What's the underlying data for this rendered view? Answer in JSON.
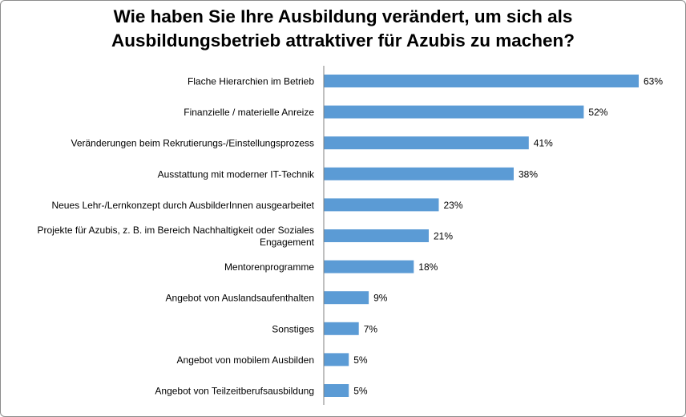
{
  "chart_data": {
    "type": "bar",
    "orientation": "horizontal",
    "title": "Wie haben Sie Ihre Ausbildung verändert, um sich als Ausbildungsbetrieb attraktiver für Azubis zu machen?",
    "title_lines": [
      "Wie haben Sie Ihre Ausbildung verändert, um sich als",
      "Ausbildungsbetrieb attraktiver für Azubis zu machen?"
    ],
    "categories": [
      "Flache Hierarchien im Betrieb",
      "Finanzielle / materielle Anreize",
      "Veränderungen beim Rekrutierungs-/Einstellungsprozess",
      "Ausstattung mit moderner IT-Technik",
      "Neues Lehr-/Lernkonzept durch AusbilderInnen ausgearbeitet",
      "Projekte für Azubis, z. B. im Bereich Nachhaltigkeit oder Soziales Engagement",
      "Mentorenprogramme",
      "Angebot von Auslandsaufenthalten",
      "Sonstiges",
      "Angebot von mobilem Ausbilden",
      "Angebot von Teilzeitberufsausbildung"
    ],
    "category_lines": [
      [
        "Flache Hierarchien im Betrieb"
      ],
      [
        "Finanzielle / materielle Anreize"
      ],
      [
        "Veränderungen beim Rekrutierungs-/Einstellungsprozess"
      ],
      [
        "Ausstattung mit moderner IT-Technik"
      ],
      [
        "Neues Lehr-/Lernkonzept durch AusbilderInnen ausgearbeitet"
      ],
      [
        "Projekte für Azubis, z. B. im Bereich Nachhaltigkeit oder Soziales",
        "Engagement"
      ],
      [
        "Mentorenprogramme"
      ],
      [
        "Angebot von Auslandsaufenthalten"
      ],
      [
        "Sonstiges"
      ],
      [
        "Angebot von mobilem Ausbilden"
      ],
      [
        "Angebot von Teilzeitberufsausbildung"
      ]
    ],
    "values": [
      63,
      52,
      41,
      38,
      23,
      21,
      18,
      9,
      7,
      5,
      5
    ],
    "value_labels": [
      "63%",
      "52%",
      "41%",
      "38%",
      "23%",
      "21%",
      "18%",
      "9%",
      "7%",
      "5%",
      "5%"
    ],
    "unit": "%",
    "xlim": [
      0,
      63
    ],
    "grid": false,
    "legend": "none",
    "bar_color": "#5b9bd5"
  }
}
